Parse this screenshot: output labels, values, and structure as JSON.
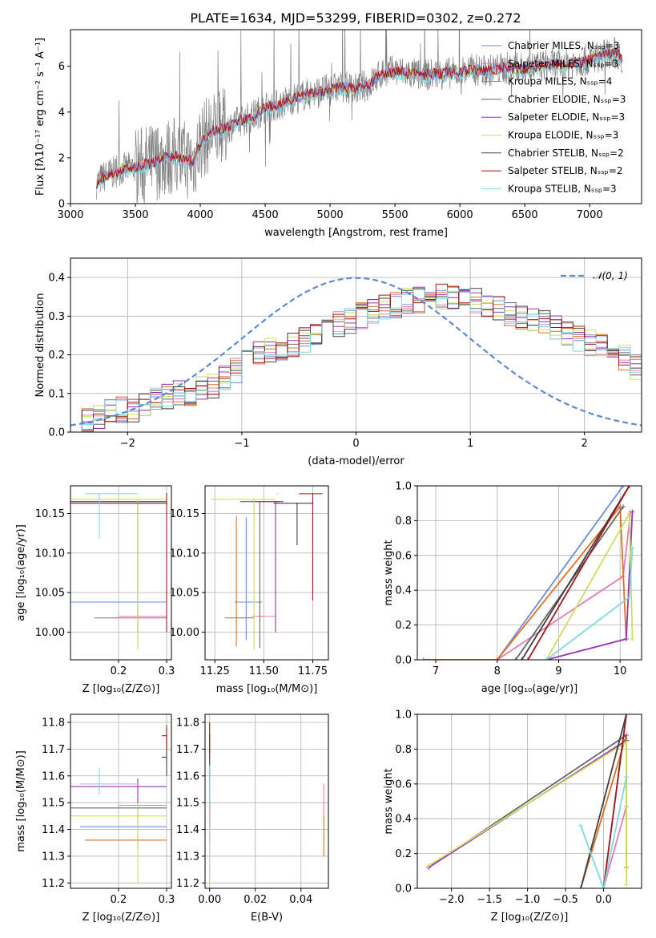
{
  "colors": {
    "Chabrier MILES": "#6a8fd8",
    "Salpeter MILES": "#e57cb4",
    "Kroupa MILES": "#e07020",
    "Chabrier ELODIE": "#666666",
    "Salpeter ELODIE": "#9b30b8",
    "Kroupa ELODIE": "#c8e060",
    "Chabrier STELIB": "#404040",
    "Salpeter STELIB": "#a01818",
    "Kroupa STELIB": "#80d8e0",
    "data": "#808080",
    "gauss": "#5b8bd4"
  },
  "chart_data": [
    {
      "id": "spectrum",
      "type": "line",
      "title": "PLATE=1634, MJD=53299, FIBERID=0302, z=0.272",
      "xlabel": "wavelength [Angstrom, rest frame]",
      "ylabel": "Flux [fλ10⁻¹⁷ erg cm⁻² s⁻¹ A⁻¹]",
      "xlim": [
        3000,
        7400
      ],
      "ylim": [
        0,
        7.6
      ],
      "xticks": [
        "3000",
        "3500",
        "4000",
        "4500",
        "5000",
        "5500",
        "6000",
        "6500",
        "7000"
      ],
      "yticks": [
        "0",
        "2",
        "4",
        "6"
      ],
      "grid": false,
      "legend_position": "top-right",
      "legend": [
        "Chabrier MILES, Nₛₛₚ=3",
        "Salpeter MILES, Nₛₛₚ=3",
        "Kroupa MILES, Nₛₛₚ=4",
        "Chabrier ELODIE, Nₛₛₚ=3",
        "Salpeter ELODIE, Nₛₛₚ=3",
        "Kroupa ELODIE, Nₛₛₚ=3",
        "Chabrier STELIB, Nₛₛₚ=2",
        "Salpeter STELIB, Nₛₛₚ=2",
        "Kroupa STELIB, Nₛₛₚ=3"
      ],
      "model_continuum": {
        "x": [
          3200,
          3250,
          3300,
          3400,
          3500,
          3600,
          3700,
          3800,
          3850,
          3900,
          3950,
          4000,
          4100,
          4200,
          4300,
          4400,
          4500,
          4600,
          4700,
          4800,
          4900,
          5000,
          5100,
          5200,
          5300,
          5400,
          5500,
          5600,
          5700,
          5800,
          5900,
          6000,
          6100,
          6200,
          6300,
          6400,
          6500,
          6600,
          6700,
          6800,
          6900,
          7000,
          7100,
          7200,
          7250
        ],
        "y": [
          0.9,
          1.15,
          1.3,
          1.5,
          1.6,
          1.75,
          1.95,
          2.1,
          2.0,
          1.9,
          1.85,
          2.7,
          3.2,
          3.3,
          3.6,
          3.8,
          4.2,
          4.3,
          4.55,
          4.75,
          4.85,
          5.0,
          5.1,
          5.0,
          5.2,
          5.7,
          5.8,
          5.7,
          5.6,
          5.65,
          5.7,
          5.75,
          5.85,
          5.8,
          5.9,
          5.95,
          5.9,
          6.0,
          6.1,
          6.05,
          6.2,
          6.3,
          6.5,
          6.6,
          6.4
        ]
      }
    },
    {
      "id": "residuals",
      "type": "histogram",
      "xlabel": "(data-model)/error",
      "ylabel": "Normed distribution",
      "xlim": [
        -2.5,
        2.5
      ],
      "ylim": [
        0,
        0.45
      ],
      "xticks": [
        "−2",
        "−1",
        "0",
        "1",
        "2"
      ],
      "yticks": [
        "0.0",
        "0.1",
        "0.2",
        "0.3",
        "0.4"
      ],
      "grid": true,
      "legend_position": "top-right",
      "legend": [
        "𝒩(0, 1)"
      ],
      "bin_edges_from": -2.5,
      "bin_width": 0.1,
      "values": [
        0.02,
        0.03,
        0.04,
        0.05,
        0.06,
        0.06,
        0.07,
        0.08,
        0.09,
        0.1,
        0.1,
        0.11,
        0.12,
        0.14,
        0.16,
        0.18,
        0.2,
        0.21,
        0.22,
        0.23,
        0.24,
        0.26,
        0.27,
        0.28,
        0.29,
        0.3,
        0.31,
        0.32,
        0.33,
        0.34,
        0.34,
        0.35,
        0.35,
        0.35,
        0.34,
        0.34,
        0.33,
        0.32,
        0.31,
        0.3,
        0.29,
        0.28,
        0.27,
        0.26,
        0.24,
        0.23,
        0.22,
        0.2,
        0.19,
        0.17,
        0.16,
        0.15,
        0.14,
        0.13,
        0.12,
        0.11,
        0.1,
        0.09,
        0.09,
        0.08,
        0.07,
        0.07,
        0.06,
        0.06,
        0.05,
        0.05,
        0.05,
        0.04,
        0.04,
        0.04,
        0.04,
        0.04,
        0.04,
        0.04,
        0.04,
        0.04,
        0.04,
        0.04,
        0.04,
        0.04,
        0.04
      ]
    },
    {
      "id": "age-vs-Z",
      "type": "scatter",
      "xlabel": "Z [log₁₀(Z/Z⊙)]",
      "ylabel": "age  [log₁₀(age/yr)]",
      "xlim": [
        0.1,
        0.31
      ],
      "ylim": [
        9.965,
        10.185
      ],
      "xticks": [
        "0.2",
        "0.3"
      ],
      "yticks": [
        "10.00",
        "10.05",
        "10.10",
        "10.15"
      ],
      "grid": true,
      "points": [
        {
          "model": "Chabrier MILES",
          "x": 0.2,
          "y": 10.038,
          "xerr": [
            0.1,
            0.3
          ],
          "yerr": [
            10.038,
            10.038
          ]
        },
        {
          "model": "Salpeter MILES",
          "x": 0.24,
          "y": 10.02,
          "xerr": [
            0.2,
            0.3
          ],
          "yerr": [
            10.02,
            10.02
          ]
        },
        {
          "model": "Kroupa MILES",
          "x": 0.24,
          "y": 10.018,
          "xerr": [
            0.15,
            0.3
          ],
          "yerr": [
            10.018,
            10.018
          ]
        },
        {
          "model": "Chabrier ELODIE",
          "x": 0.24,
          "y": 10.165,
          "xerr": [
            0.1,
            0.3
          ],
          "yerr": [
            9.98,
            10.165
          ]
        },
        {
          "model": "Salpeter ELODIE",
          "x": 0.24,
          "y": 10.165,
          "xerr": [
            0.1,
            0.3
          ],
          "yerr": [
            10.0,
            10.165
          ]
        },
        {
          "model": "Kroupa ELODIE",
          "x": 0.24,
          "y": 10.168,
          "xerr": [
            0.1,
            0.3
          ],
          "yerr": [
            9.978,
            10.168
          ]
        },
        {
          "model": "Chabrier STELIB",
          "x": 0.3,
          "y": 10.163,
          "xerr": [
            0.1,
            0.3
          ],
          "yerr": [
            10.163,
            10.163
          ]
        },
        {
          "model": "Salpeter STELIB",
          "x": 0.3,
          "y": 10.175,
          "xerr": [
            0.3,
            0.3
          ],
          "yerr": [
            10.0,
            10.175
          ]
        },
        {
          "model": "Kroupa STELIB",
          "x": 0.16,
          "y": 10.175,
          "xerr": [
            0.13,
            0.24
          ],
          "yerr": [
            10.118,
            10.175
          ]
        }
      ]
    },
    {
      "id": "age-vs-mass",
      "type": "scatter",
      "xlabel": "mass [log₁₀(M/M⊙)]",
      "ylabel": "",
      "xlim": [
        11.2,
        11.83
      ],
      "ylim": [
        9.965,
        10.185
      ],
      "xticks": [
        "11.25",
        "11.50",
        "11.75"
      ],
      "yticks": [
        "10.00",
        "10.05",
        "10.10",
        "10.15"
      ],
      "grid": true,
      "points": [
        {
          "model": "Chabrier MILES",
          "x": 11.41,
          "y": 10.038,
          "xerr": [
            11.35,
            11.49
          ],
          "yerr": [
            9.99,
            10.145
          ]
        },
        {
          "model": "Salpeter MILES",
          "x": 11.49,
          "y": 10.02,
          "xerr": [
            11.44,
            11.56
          ],
          "yerr": [
            10.02,
            10.02
          ]
        },
        {
          "model": "Kroupa MILES",
          "x": 11.36,
          "y": 10.018,
          "xerr": [
            11.3,
            11.45
          ],
          "yerr": [
            9.982,
            10.147
          ]
        },
        {
          "model": "Chabrier ELODIE",
          "x": 11.48,
          "y": 10.165,
          "xerr": [
            11.38,
            11.58
          ],
          "yerr": [
            9.98,
            10.165
          ]
        },
        {
          "model": "Salpeter ELODIE",
          "x": 11.56,
          "y": 10.165,
          "xerr": [
            11.44,
            11.6
          ],
          "yerr": [
            10.0,
            10.165
          ]
        },
        {
          "model": "Kroupa ELODIE",
          "x": 11.45,
          "y": 10.168,
          "xerr": [
            11.23,
            11.56
          ],
          "yerr": [
            9.978,
            10.168
          ]
        },
        {
          "model": "Chabrier STELIB",
          "x": 11.67,
          "y": 10.163,
          "xerr": [
            11.55,
            11.75
          ],
          "yerr": [
            10.11,
            10.163
          ]
        },
        {
          "model": "Salpeter STELIB",
          "x": 11.75,
          "y": 10.175,
          "xerr": [
            11.68,
            11.8
          ],
          "yerr": [
            10.04,
            10.175
          ]
        },
        {
          "model": "Kroupa STELIB",
          "x": 11.57,
          "y": 10.175,
          "xerr": [
            11.57,
            11.57
          ],
          "yerr": [
            10.175,
            10.175
          ]
        }
      ]
    },
    {
      "id": "mass-weight-vs-age",
      "type": "line",
      "xlabel": "age  [log₁₀(age/yr)]",
      "ylabel": "mass weight",
      "xlim": [
        6.7,
        10.35
      ],
      "ylim": [
        0,
        1.0
      ],
      "xticks": [
        "7",
        "8",
        "9",
        "10"
      ],
      "yticks": [
        "0.0",
        "0.2",
        "0.4",
        "0.6",
        "0.8",
        "1.0"
      ],
      "grid": true,
      "series": [
        {
          "model": "Chabrier MILES",
          "x": [
            8.0,
            10.05
          ],
          "y": [
            0.0,
            1.0
          ]
        },
        {
          "model": "Salpeter MILES",
          "x": [
            8.0,
            10.05,
            10.17
          ],
          "y": [
            0.0,
            0.48,
            0.85
          ]
        },
        {
          "model": "Kroupa MILES",
          "x": [
            6.8,
            8.0,
            10.0,
            10.1
          ],
          "y": [
            0.0,
            0.0,
            0.88,
            0.12
          ]
        },
        {
          "model": "Chabrier ELODIE",
          "x": [
            8.3,
            10.05
          ],
          "y": [
            0.0,
            0.88
          ]
        },
        {
          "model": "Salpeter ELODIE",
          "x": [
            8.8,
            10.1,
            10.2
          ],
          "y": [
            0.0,
            0.12,
            0.85
          ]
        },
        {
          "model": "Kroupa ELODIE",
          "x": [
            8.8,
            10.15,
            10.2
          ],
          "y": [
            0.0,
            0.84,
            0.12
          ]
        },
        {
          "model": "Chabrier STELIB",
          "x": [
            8.4,
            10.15
          ],
          "y": [
            0.0,
            1.0
          ]
        },
        {
          "model": "Salpeter STELIB",
          "x": [
            8.5,
            10.15
          ],
          "y": [
            0.0,
            1.0
          ]
        },
        {
          "model": "Kroupa STELIB",
          "x": [
            8.8,
            10.15,
            10.2
          ],
          "y": [
            0.0,
            0.36,
            0.64
          ]
        }
      ]
    },
    {
      "id": "mass-vs-Z",
      "type": "scatter",
      "xlabel": "Z [log₁₀(Z/Z⊙)]",
      "ylabel": "mass [log₁₀(M/M⊙)]",
      "xlim": [
        0.1,
        0.31
      ],
      "ylim": [
        11.18,
        11.83
      ],
      "xticks": [
        "0.2",
        "0.3"
      ],
      "yticks": [
        "11.2",
        "11.3",
        "11.4",
        "11.5",
        "11.6",
        "11.7",
        "11.8"
      ],
      "grid": true,
      "points": [
        {
          "model": "Chabrier MILES",
          "x": 0.2,
          "y": 11.41,
          "xerr": [
            0.12,
            0.3
          ],
          "yerr": [
            11.41,
            11.41
          ]
        },
        {
          "model": "Salpeter MILES",
          "x": 0.24,
          "y": 11.49,
          "xerr": [
            0.2,
            0.3
          ],
          "yerr": [
            11.49,
            11.49
          ]
        },
        {
          "model": "Kroupa MILES",
          "x": 0.24,
          "y": 11.36,
          "xerr": [
            0.13,
            0.3
          ],
          "yerr": [
            11.36,
            11.36
          ]
        },
        {
          "model": "Chabrier ELODIE",
          "x": 0.24,
          "y": 11.48,
          "xerr": [
            0.1,
            0.3
          ],
          "yerr": [
            11.48,
            11.48
          ]
        },
        {
          "model": "Salpeter ELODIE",
          "x": 0.24,
          "y": 11.56,
          "xerr": [
            0.1,
            0.3
          ],
          "yerr": [
            11.33,
            11.59
          ]
        },
        {
          "model": "Kroupa ELODIE",
          "x": 0.24,
          "y": 11.45,
          "xerr": [
            0.1,
            0.3
          ],
          "yerr": [
            11.2,
            11.5
          ]
        },
        {
          "model": "Chabrier STELIB",
          "x": 0.3,
          "y": 11.67,
          "xerr": [
            0.29,
            0.3
          ],
          "yerr": [
            11.6,
            11.75
          ]
        },
        {
          "model": "Salpeter STELIB",
          "x": 0.3,
          "y": 11.75,
          "xerr": [
            0.29,
            0.3
          ],
          "yerr": [
            11.7,
            11.79
          ]
        },
        {
          "model": "Kroupa STELIB",
          "x": 0.16,
          "y": 11.57,
          "xerr": [
            0.12,
            0.24
          ],
          "yerr": [
            11.53,
            11.63
          ]
        }
      ]
    },
    {
      "id": "mass-vs-EBV",
      "type": "scatter",
      "xlabel": "E(B-V)",
      "ylabel": "",
      "xlim": [
        -0.002,
        0.052
      ],
      "ylim": [
        11.18,
        11.83
      ],
      "xticks": [
        "0.00",
        "0.02",
        "0.04"
      ],
      "yticks": [
        "11.2",
        "11.3",
        "11.4",
        "11.5",
        "11.6",
        "11.7",
        "11.8"
      ],
      "grid": true,
      "points": [
        {
          "model": "Chabrier MILES",
          "x": 0.0,
          "y": 11.41,
          "yerr": [
            11.35,
            11.49
          ]
        },
        {
          "model": "Salpeter MILES",
          "x": 0.05,
          "y": 11.49,
          "yerr": [
            11.44,
            11.57
          ]
        },
        {
          "model": "Kroupa MILES",
          "x": 0.05,
          "y": 11.36,
          "yerr": [
            11.3,
            11.45
          ]
        },
        {
          "model": "Chabrier ELODIE",
          "x": 0.0,
          "y": 11.48,
          "yerr": [
            11.4,
            11.55
          ]
        },
        {
          "model": "Salpeter ELODIE",
          "x": 0.0,
          "y": 11.56,
          "yerr": [
            11.44,
            11.6
          ]
        },
        {
          "model": "Kroupa ELODIE",
          "x": 0.0,
          "y": 11.45,
          "yerr": [
            11.2,
            11.56
          ]
        },
        {
          "model": "Chabrier STELIB",
          "x": 0.0,
          "y": 11.67,
          "yerr": [
            11.6,
            11.75
          ]
        },
        {
          "model": "Salpeter STELIB",
          "x": 0.0,
          "y": 11.75,
          "yerr": [
            11.68,
            11.8
          ]
        },
        {
          "model": "Kroupa STELIB",
          "x": 0.0,
          "y": 11.57,
          "yerr": [
            11.5,
            11.64
          ]
        }
      ]
    },
    {
      "id": "mass-weight-vs-Z",
      "type": "line",
      "xlabel": "Z [log₁₀(Z/Z⊙)]",
      "ylabel": "mass weight",
      "xlim": [
        -2.45,
        0.5
      ],
      "ylim": [
        0,
        1.0
      ],
      "xticks": [
        "−2.0",
        "−1.5",
        "−1.0",
        "−0.5",
        "0.0"
      ],
      "yticks": [
        "0.0",
        "0.2",
        "0.4",
        "0.6",
        "0.8",
        "1.0"
      ],
      "grid": true,
      "series": [
        {
          "model": "Chabrier MILES",
          "x": [
            0.0,
            0.3
          ],
          "y": [
            0.0,
            1.0
          ]
        },
        {
          "model": "Salpeter MILES",
          "x": [
            0.0,
            0.3
          ],
          "y": [
            0.0,
            0.47
          ]
        },
        {
          "model": "Kroupa MILES",
          "x": [
            -0.3,
            0.3,
            0.3
          ],
          "y": [
            0.0,
            0.88,
            0.12
          ]
        },
        {
          "model": "Chabrier ELODIE",
          "x": [
            -2.3,
            0.3
          ],
          "y": [
            0.12,
            0.88
          ]
        },
        {
          "model": "Salpeter ELODIE",
          "x": [
            -2.3,
            0.3
          ],
          "y": [
            0.12,
            0.85
          ]
        },
        {
          "model": "Kroupa ELODIE",
          "x": [
            -2.3,
            0.3,
            0.3
          ],
          "y": [
            0.13,
            0.84,
            0.02
          ]
        },
        {
          "model": "Chabrier STELIB",
          "x": [
            -0.3,
            0.3
          ],
          "y": [
            0.0,
            1.0
          ]
        },
        {
          "model": "Salpeter STELIB",
          "x": [
            0.0,
            0.3
          ],
          "y": [
            0.0,
            1.0
          ]
        },
        {
          "model": "Kroupa STELIB",
          "x": [
            -0.3,
            0.0,
            0.3
          ],
          "y": [
            0.36,
            0.0,
            0.64
          ]
        }
      ]
    }
  ]
}
